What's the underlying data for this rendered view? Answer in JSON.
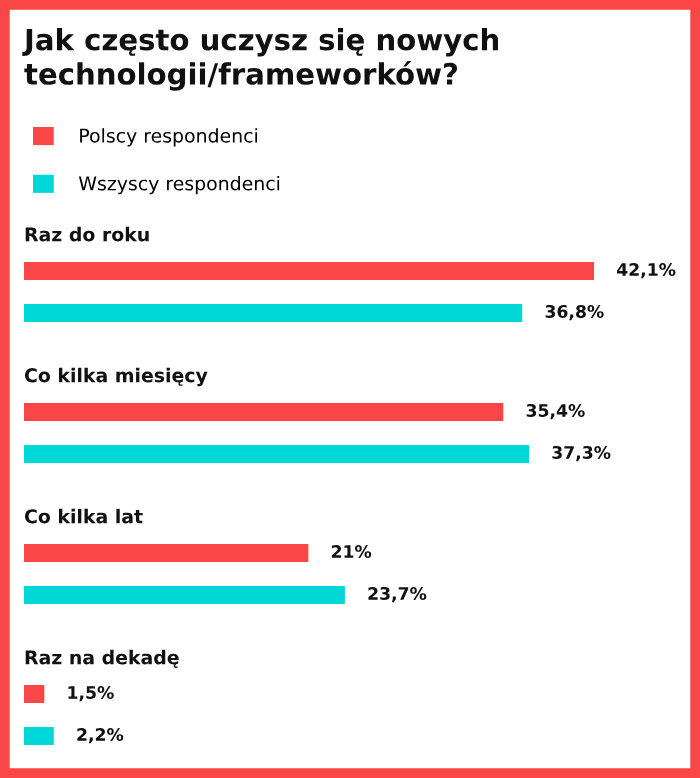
{
  "chart_data": {
    "type": "bar",
    "orientation": "horizontal",
    "title": "Jak często uczysz się nowych technologii/frameworków?",
    "categories": [
      "Raz do roku",
      "Co kilka miesięcy",
      "Co kilka lat",
      "Raz na dekadę"
    ],
    "series": [
      {
        "name": "Polscy respondenci",
        "color": "#fa4646",
        "values": [
          42.1,
          35.4,
          21,
          1.5
        ],
        "value_labels": [
          "42,1%",
          "35,4%",
          "21%",
          "1,5%"
        ]
      },
      {
        "name": "Wszyscy respondenci",
        "color": "#00d8d8",
        "values": [
          36.8,
          37.3,
          23.7,
          2.2
        ],
        "value_labels": [
          "36,8%",
          "37,3%",
          "23,7%",
          "2,2%"
        ]
      }
    ],
    "legend": "top"
  }
}
